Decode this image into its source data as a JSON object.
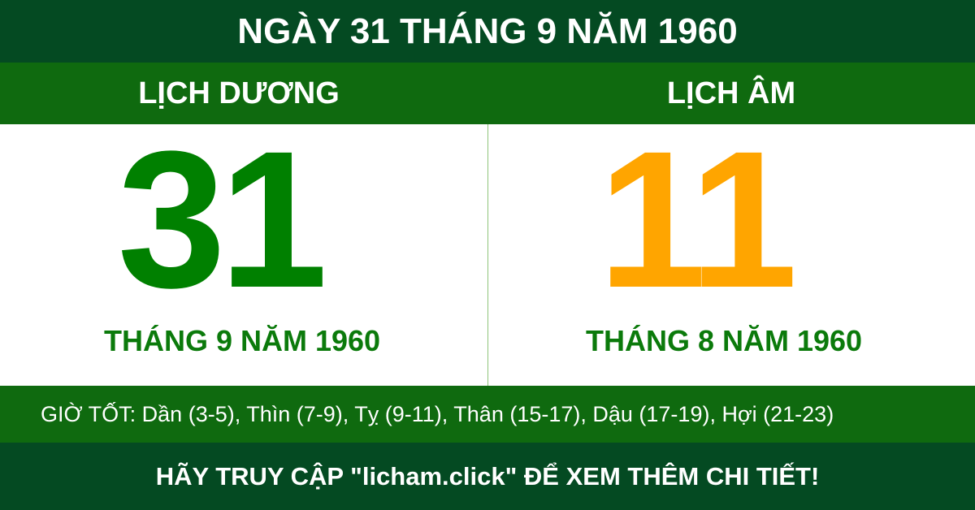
{
  "title": "NGÀY 31 THÁNG 9 NĂM 1960",
  "solar": {
    "label": "LỊCH DƯƠNG",
    "day": "31",
    "month_year": "THÁNG 9 NĂM 1960",
    "color": "#008000"
  },
  "lunar": {
    "label": "LỊCH ÂM",
    "day": "11",
    "month_year": "THÁNG 8 NĂM 1960",
    "color": "#ffa500"
  },
  "good_hours": "GIỜ TỐT: Dần (3-5), Thìn (7-9), Tỵ (9-11), Thân (15-17), Dậu (17-19), Hợi (21-23)",
  "footer": "HÃY TRUY CẬP \"licham.click\" ĐỂ XEM THÊM CHI TIẾT!"
}
